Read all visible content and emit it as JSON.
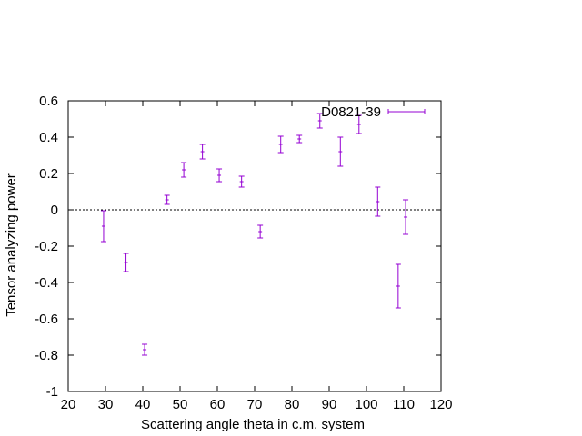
{
  "chart_data": {
    "type": "scatter",
    "title": "",
    "xlabel": "Scattering angle theta in c.m. system",
    "ylabel": "Tensor analyzing power",
    "xlim": [
      20,
      120
    ],
    "ylim": [
      -1,
      0.6
    ],
    "x_ticks": [
      "20",
      "30",
      "40",
      "50",
      "60",
      "70",
      "80",
      "90",
      "100",
      "110",
      "120"
    ],
    "y_ticks": [
      "-1",
      "-0.8",
      "-0.6",
      "-0.4",
      "-0.2",
      "0",
      "0.2",
      "0.4",
      "0.6"
    ],
    "grid": false,
    "zero_line": true,
    "legend_position": "top-right",
    "series": [
      {
        "name": "D0821-39",
        "color": "#9400d3",
        "error_bars": true,
        "points": [
          {
            "x": 29.5,
            "y": -0.09,
            "err": 0.085
          },
          {
            "x": 35.5,
            "y": -0.29,
            "err": 0.05
          },
          {
            "x": 40.5,
            "y": -0.77,
            "err": 0.03
          },
          {
            "x": 46.5,
            "y": 0.055,
            "err": 0.025
          },
          {
            "x": 51.0,
            "y": 0.22,
            "err": 0.04
          },
          {
            "x": 56.0,
            "y": 0.32,
            "err": 0.04
          },
          {
            "x": 60.5,
            "y": 0.19,
            "err": 0.035
          },
          {
            "x": 66.5,
            "y": 0.155,
            "err": 0.03
          },
          {
            "x": 71.5,
            "y": -0.12,
            "err": 0.035
          },
          {
            "x": 77.0,
            "y": 0.36,
            "err": 0.045
          },
          {
            "x": 82.0,
            "y": 0.39,
            "err": 0.02
          },
          {
            "x": 87.5,
            "y": 0.49,
            "err": 0.04
          },
          {
            "x": 93.0,
            "y": 0.32,
            "err": 0.08
          },
          {
            "x": 98.0,
            "y": 0.47,
            "err": 0.05
          },
          {
            "x": 103.0,
            "y": 0.045,
            "err": 0.08
          },
          {
            "x": 108.5,
            "y": -0.42,
            "err": 0.12
          },
          {
            "x": 110.5,
            "y": -0.04,
            "err": 0.095
          }
        ]
      }
    ]
  }
}
